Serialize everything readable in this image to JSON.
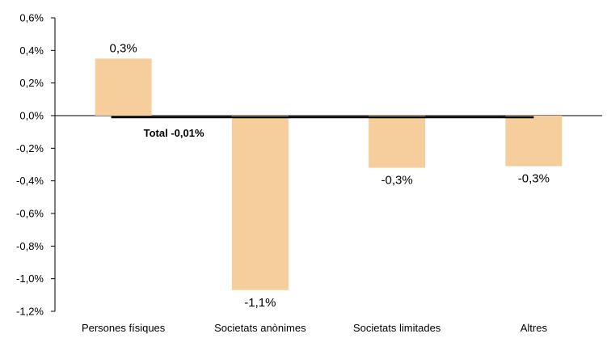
{
  "chart_data": {
    "type": "bar",
    "title": "",
    "xlabel": "",
    "ylabel": "",
    "ylim": [
      -1.2,
      0.6
    ],
    "y_ticks": [
      0.6,
      0.4,
      0.2,
      0.0,
      -0.2,
      -0.4,
      -0.6,
      -0.8,
      -1.0,
      -1.2
    ],
    "y_tick_labels": [
      "0,6%",
      "0,4%",
      "0,2%",
      "0,0%",
      "-0,2%",
      "-0,4%",
      "-0,6%",
      "-0,8%",
      "-1,0%",
      "-1,2%"
    ],
    "categories": [
      "Persones físiques",
      "Societats anònimes",
      "Societats limitades",
      "Altres"
    ],
    "values": [
      0.35,
      -1.07,
      -0.32,
      -0.31
    ],
    "data_labels": [
      "0,3%",
      "-1,1%",
      "-0,3%",
      "-0,3%"
    ],
    "bar_color": "#F5CE9B",
    "total": {
      "label": "Total -0,01%",
      "value": -0.01,
      "line_color": "#000000"
    },
    "grid": false,
    "legend": "none"
  }
}
